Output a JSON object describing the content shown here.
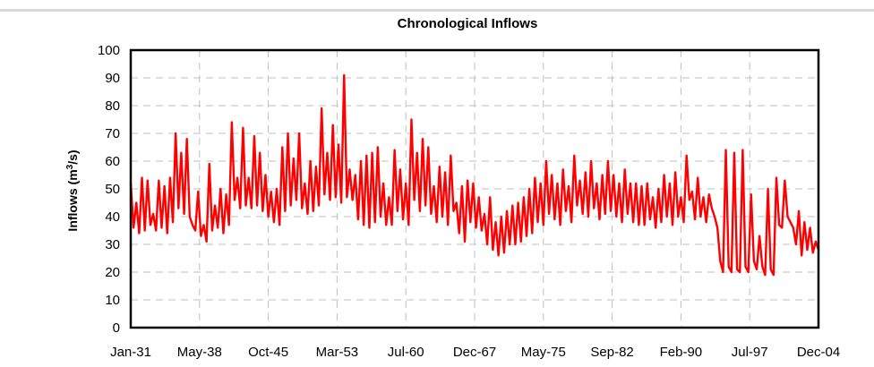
{
  "chart_data": {
    "type": "line",
    "title": "Chronological Inflows",
    "xlabel": "",
    "ylabel": "Inflows (m³/s)",
    "ylabel_parts": {
      "before": "Inflows (m",
      "sup": "3",
      "after": "/s)"
    },
    "ylim": [
      0,
      100
    ],
    "yticks": [
      0,
      10,
      20,
      30,
      40,
      50,
      60,
      70,
      80,
      90,
      100
    ],
    "xticks": [
      "Jan-31",
      "May-38",
      "Oct-45",
      "Mar-53",
      "Jul-60",
      "Dec-67",
      "May-75",
      "Sep-82",
      "Feb-90",
      "Jul-97",
      "Dec-04"
    ],
    "grid": true,
    "legend": "none",
    "series": [
      {
        "color": "#ff0000",
        "xrange_years": [
          1931.0,
          2004.92
        ],
        "values": [
          52,
          36,
          45,
          34,
          54,
          35,
          53,
          37,
          41,
          35,
          53,
          36,
          51,
          34,
          54,
          38,
          70,
          43,
          63,
          41,
          68,
          40,
          37,
          35,
          49,
          33,
          37,
          31,
          59,
          35,
          44,
          36,
          50,
          34,
          48,
          37,
          74,
          46,
          54,
          43,
          72,
          44,
          54,
          43,
          69,
          44,
          63,
          42,
          55,
          40,
          49,
          38,
          50,
          37,
          65,
          42,
          70,
          44,
          61,
          46,
          70,
          43,
          52,
          41,
          60,
          42,
          58,
          44,
          79,
          48,
          63,
          46,
          73,
          47,
          66,
          45,
          91,
          47,
          57,
          46,
          55,
          39,
          60,
          37,
          62,
          36,
          63,
          38,
          65,
          40,
          52,
          37,
          47,
          37,
          64,
          42,
          57,
          39,
          52,
          37,
          75,
          46,
          63,
          42,
          68,
          44,
          65,
          41,
          51,
          38,
          58,
          40,
          56,
          37,
          62,
          42,
          45,
          34,
          51,
          31,
          53,
          38,
          52,
          36,
          47,
          35,
          41,
          30,
          47,
          28,
          38,
          26,
          40,
          27,
          42,
          30,
          44,
          30,
          45,
          31,
          47,
          33,
          50,
          34,
          54,
          38,
          52,
          37,
          60,
          41,
          55,
          39,
          52,
          37,
          57,
          42,
          51,
          38,
          62,
          44,
          53,
          41,
          56,
          40,
          60,
          43,
          52,
          39,
          55,
          41,
          60,
          42,
          55,
          40,
          52,
          38,
          57,
          41,
          52,
          38,
          52,
          37,
          51,
          37,
          52,
          39,
          47,
          36,
          50,
          38,
          55,
          40,
          52,
          37,
          56,
          40,
          47,
          38,
          62,
          46,
          49,
          39,
          54,
          40,
          47,
          38,
          48,
          43,
          40,
          36,
          24,
          20,
          64,
          22,
          20,
          63,
          21,
          20,
          64,
          22,
          20,
          48,
          24,
          21,
          33,
          22,
          19,
          50,
          21,
          19,
          54,
          37,
          36,
          53,
          40,
          38,
          36,
          30,
          42,
          26,
          38,
          28,
          36,
          27,
          31,
          28
        ]
      }
    ]
  }
}
